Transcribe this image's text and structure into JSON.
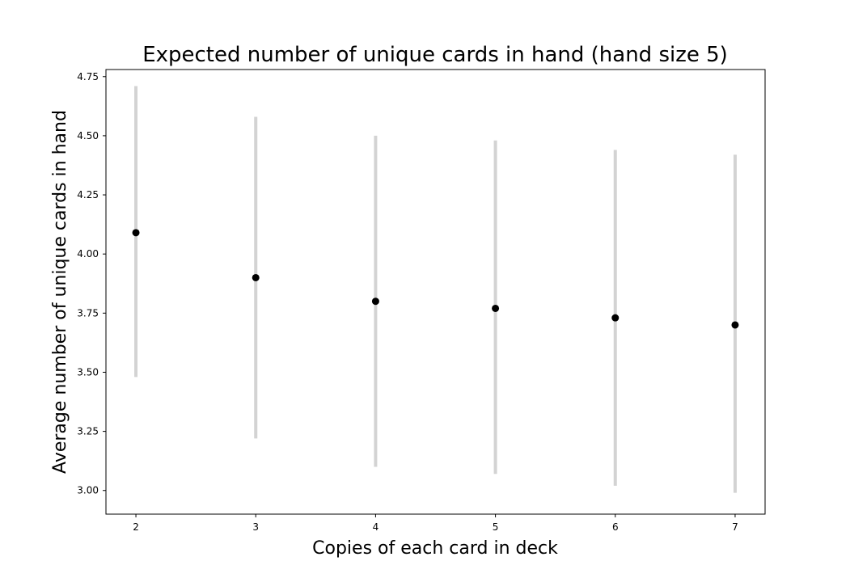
{
  "chart_data": {
    "type": "scatter",
    "title": "Expected number of unique cards in hand (hand size 5)",
    "xlabel": "Copies of each card in deck",
    "ylabel": "Average number of unique cards in hand",
    "x": [
      2,
      3,
      4,
      5,
      6,
      7
    ],
    "series": [
      {
        "values": [
          4.09,
          3.9,
          3.8,
          3.77,
          3.73,
          3.7
        ],
        "error_low": [
          3.48,
          3.22,
          3.1,
          3.07,
          3.02,
          2.99
        ],
        "error_high": [
          4.71,
          4.58,
          4.5,
          4.48,
          4.44,
          4.42
        ]
      }
    ],
    "xlim": [
      1.75,
      7.25
    ],
    "ylim": [
      2.9,
      4.78
    ],
    "yticks": [
      3.0,
      3.25,
      3.5,
      3.75,
      4.0,
      4.25,
      4.5,
      4.75
    ],
    "ytick_labels": [
      "3.00",
      "3.25",
      "3.50",
      "3.75",
      "4.00",
      "4.25",
      "4.50",
      "4.75"
    ],
    "xticks": [
      2,
      3,
      4,
      5,
      6,
      7
    ],
    "xtick_labels": [
      "2",
      "3",
      "4",
      "5",
      "6",
      "7"
    ],
    "grid": false,
    "legend": "none",
    "colors": {
      "marker": "#000000",
      "errorbar": "#d3d3d3",
      "axis": "#000000"
    }
  }
}
